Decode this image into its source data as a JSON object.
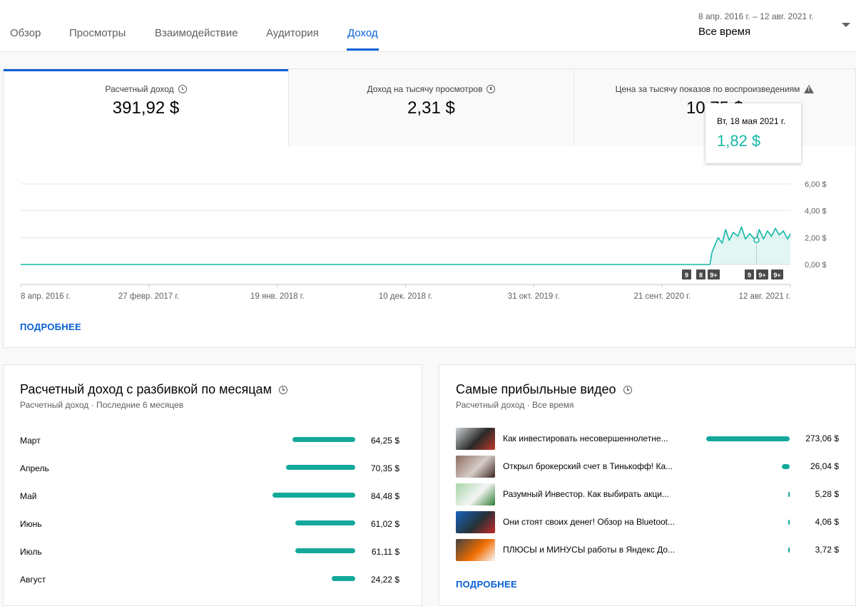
{
  "tabs": [
    {
      "label": "Обзор"
    },
    {
      "label": "Просмотры"
    },
    {
      "label": "Взаимодействие"
    },
    {
      "label": "Аудитория"
    },
    {
      "label": "Доход",
      "active": true
    }
  ],
  "date_range": {
    "dates": "8 апр. 2016 г. – 12 авг. 2021 г.",
    "label": "Все время"
  },
  "metrics": [
    {
      "label": "Расчетный доход",
      "value": "391,92 $",
      "icon": "clock-icon"
    },
    {
      "label": "Доход на тысячу просмотров",
      "value": "2,31 $",
      "icon": "clock-icon"
    },
    {
      "label": "Цена за тысячу показов по воспроизведениям",
      "value": "10,75 $",
      "icon": "warning-icon"
    }
  ],
  "chart_data": {
    "type": "line",
    "y_ticks": [
      "6,00 $",
      "4,00 $",
      "2,00 $",
      "0,00 $"
    ],
    "ylim": [
      0,
      6
    ],
    "x_ticks": [
      "8 апр. 2016 г.",
      "27 февр. 2017 г.",
      "19 янв. 2018 г.",
      "10 дек. 2018 г.",
      "31 окт. 2019 г.",
      "21 сент. 2020 г.",
      "12 авг. 2021 г."
    ],
    "series": [
      {
        "values_note_x": "months from start",
        "x": [
          "2016-04-08",
          "2021-01-20",
          "2021-01-25",
          "2021-02-01",
          "2021-02-10",
          "2021-02-20",
          "2021-03-01",
          "2021-03-10",
          "2021-03-20",
          "2021-04-01",
          "2021-04-10",
          "2021-04-20",
          "2021-05-01",
          "2021-05-10",
          "2021-05-18",
          "2021-05-25",
          "2021-06-05",
          "2021-06-15",
          "2021-06-25",
          "2021-07-05",
          "2021-07-15",
          "2021-07-25",
          "2021-08-05",
          "2021-08-12"
        ],
        "values": [
          0,
          0,
          0.9,
          1.4,
          2.0,
          1.6,
          2.6,
          1.8,
          2.4,
          2.1,
          2.8,
          1.9,
          2.3,
          2.0,
          1.82,
          2.6,
          1.9,
          2.5,
          2.1,
          2.7,
          2.2,
          2.5,
          1.9,
          2.3
        ]
      }
    ],
    "markers": [
      "9",
      "8",
      "9+",
      "9",
      "9+",
      "9+"
    ],
    "tooltip": {
      "date": "Вт, 18 мая 2021 г.",
      "value": "1,82 $"
    },
    "accent_color": "#14b8a6"
  },
  "main_more": "ПОДРОБНЕЕ",
  "monthly": {
    "title": "Расчетный доход с разбивкой по месяцам",
    "subtitle": "Расчетный доход · Последние 6 месяцев",
    "rows": [
      {
        "label": "Март",
        "value": "64,25 $",
        "amount": 64.25
      },
      {
        "label": "Апрель",
        "value": "70,35 $",
        "amount": 70.35
      },
      {
        "label": "Май",
        "value": "84,48 $",
        "amount": 84.48
      },
      {
        "label": "Июнь",
        "value": "61,02 $",
        "amount": 61.02
      },
      {
        "label": "Июль",
        "value": "61,11 $",
        "amount": 61.11
      },
      {
        "label": "Август",
        "value": "24,22 $",
        "amount": 24.22
      }
    ]
  },
  "top_videos": {
    "title": "Самые прибыльные видео",
    "subtitle": "Расчетный доход · Все время",
    "rows": [
      {
        "title": "Как инвестировать несовершеннолетне...",
        "value": "273,06 $",
        "amount": 273.06
      },
      {
        "title": "Открыл брокерский счет в Тинькофф! Ка...",
        "value": "26,04 $",
        "amount": 26.04
      },
      {
        "title": "Разумный Инвестор. Как выбирать акци...",
        "value": "5,28 $",
        "amount": 5.28
      },
      {
        "title": "Они стоят своих денег! Обзор на Bluetoot...",
        "value": "4,06 $",
        "amount": 4.06
      },
      {
        "title": "ПЛЮСЫ и МИНУСЫ работы в Яндекс До...",
        "value": "3,72 $",
        "amount": 3.72
      }
    ],
    "more": "ПОДРОБНЕЕ"
  }
}
